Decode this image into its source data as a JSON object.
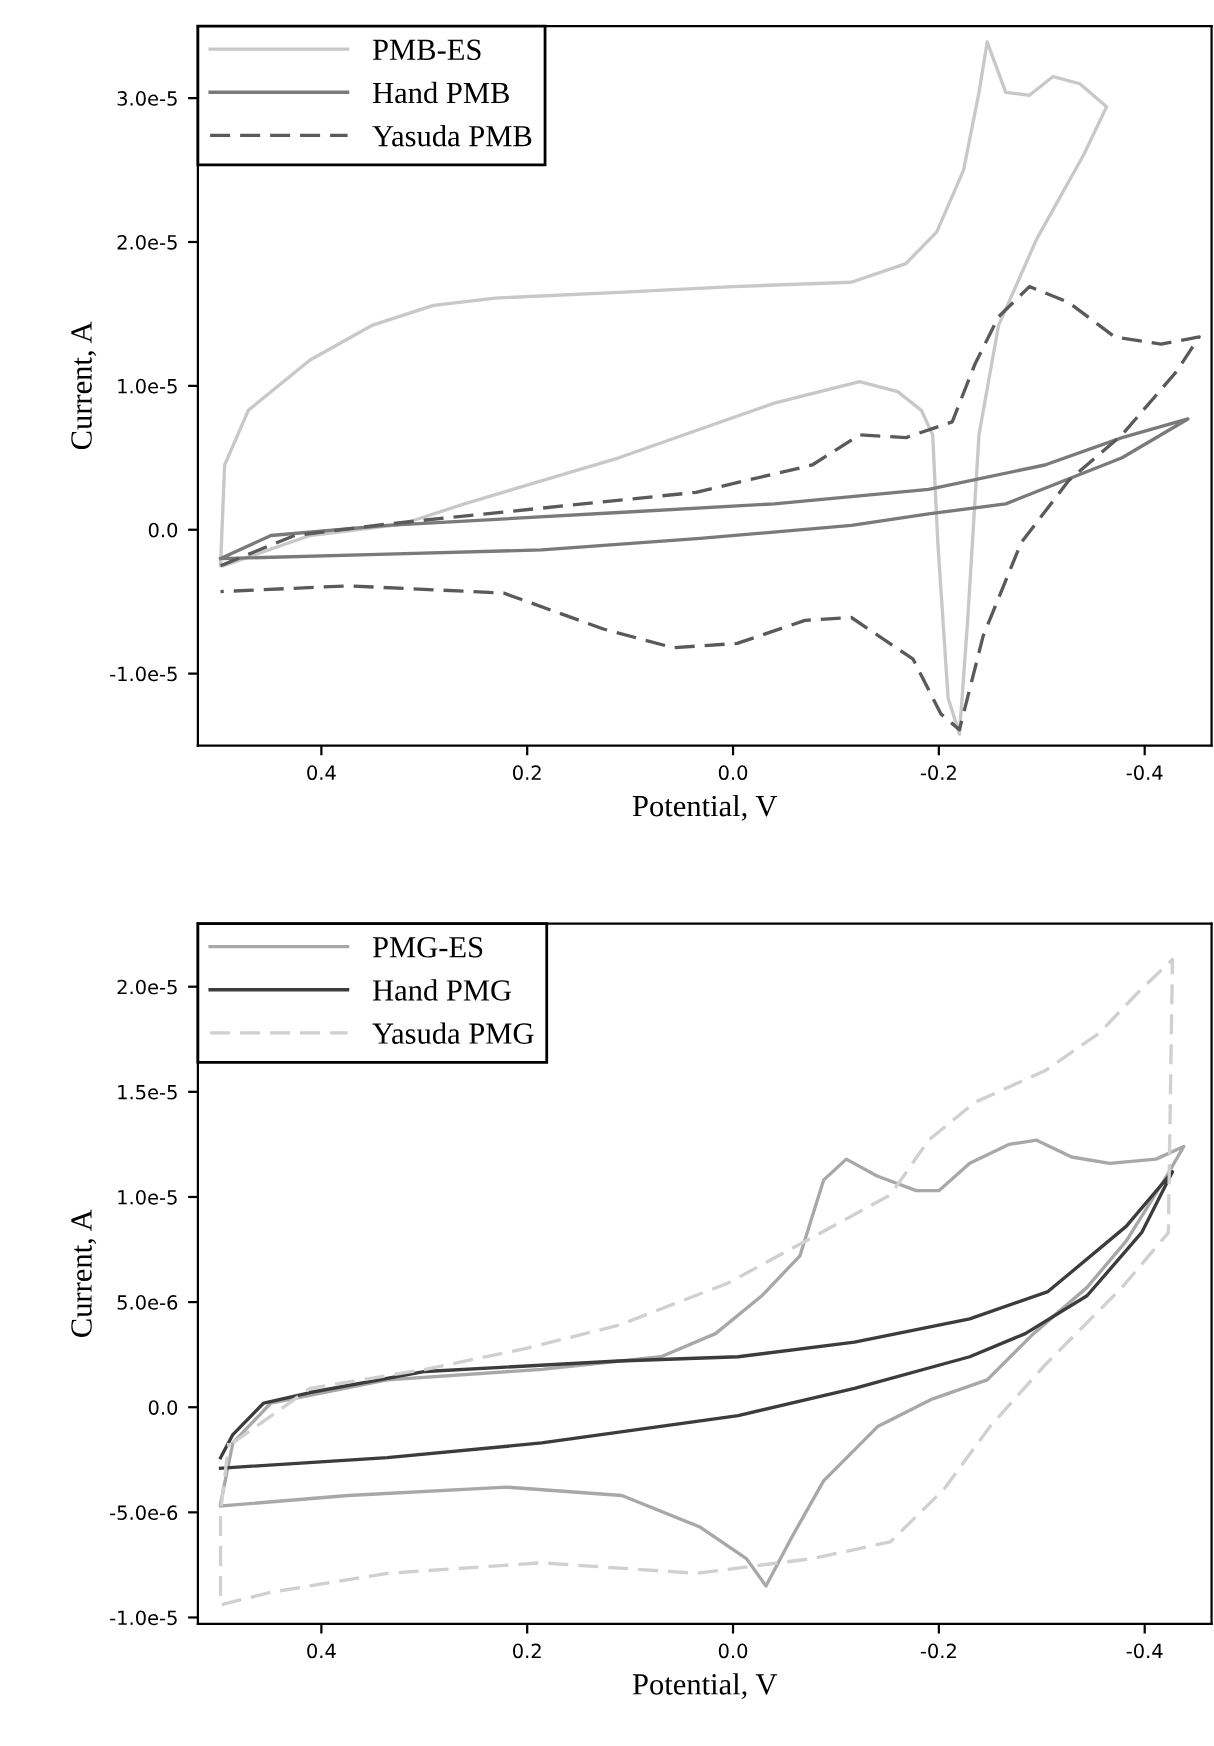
{
  "chart_data": [
    {
      "type": "line",
      "xlabel": "Potential, V",
      "ylabel": "Current, A",
      "xlim": [
        0.52,
        -0.465
      ],
      "ylim": [
        -1.5e-05,
        3.5e-05
      ],
      "xticks": [
        {
          "value": 0.4,
          "label": "0.4"
        },
        {
          "value": 0.2,
          "label": "0.2"
        },
        {
          "value": 0.0,
          "label": "0.0"
        },
        {
          "value": -0.2,
          "label": "-0.2"
        },
        {
          "value": -0.4,
          "label": "-0.4"
        }
      ],
      "yticks": [
        {
          "value": -1e-05,
          "label": "-1.0e-5"
        },
        {
          "value": 0,
          "label": "0.0"
        },
        {
          "value": 1e-05,
          "label": "1.0e-5"
        },
        {
          "value": 2e-05,
          "label": "2.0e-5"
        },
        {
          "value": 3e-05,
          "label": "3.0e-5"
        }
      ],
      "legend": "top left",
      "grid": false,
      "series": [
        {
          "name": "PMB-ES",
          "color": "#c8c8c8",
          "line_style": "solid",
          "x": [
            0.498,
            0.494,
            0.471,
            0.411,
            0.351,
            0.291,
            0.231,
            0.111,
            0.0,
            -0.115,
            -0.168,
            -0.198,
            -0.224,
            -0.239,
            -0.247,
            -0.265,
            -0.288,
            -0.311,
            -0.337,
            -0.363,
            -0.341,
            -0.295,
            -0.258,
            -0.239,
            -0.228,
            -0.22,
            -0.209,
            -0.199,
            -0.194,
            -0.183,
            -0.16,
            -0.123,
            -0.04,
            0.111,
            0.261,
            0.321,
            0.411,
            0.495
          ],
          "values": [
            -2.5e-06,
            4.5e-06,
            8.3e-06,
            1.18e-05,
            1.42e-05,
            1.56e-05,
            1.61e-05,
            1.65e-05,
            1.69e-05,
            1.72e-05,
            1.85e-05,
            2.07e-05,
            2.5e-05,
            3.04e-05,
            3.39e-05,
            3.04e-05,
            3.02e-05,
            3.15e-05,
            3.1e-05,
            2.94e-05,
            2.61e-05,
            2.02e-05,
            1.42e-05,
            6.6e-06,
            -6.3e-06,
            -1.42e-05,
            -1.17e-05,
            -9e-07,
            6.6e-06,
            8.3e-06,
            9.6e-06,
            1.03e-05,
            8.8e-06,
            5e-06,
            1.8e-06,
            4e-07,
            -4e-07,
            -2.5e-06
          ]
        },
        {
          "name": "Hand PMB",
          "color": "#7a7a7a",
          "line_style": "solid",
          "x": [
            0.498,
            0.449,
            0.336,
            0.111,
            -0.04,
            -0.19,
            -0.303,
            -0.378,
            -0.442,
            -0.378,
            -0.265,
            -0.19,
            -0.115,
            0.032,
            0.186,
            0.336,
            0.495
          ],
          "values": [
            -2e-06,
            -4e-07,
            3e-07,
            1.2e-06,
            1.8e-06,
            2.8e-06,
            4.5e-06,
            6.4e-06,
            7.7e-06,
            5e-06,
            1.8e-06,
            1.1e-06,
            3e-07,
            -6e-07,
            -1.4e-06,
            -1.7e-06,
            -2e-06
          ]
        },
        {
          "name": "Yasuda PMB",
          "color": "#5a5a5a",
          "line_style": "dashed",
          "x": [
            0.498,
            0.426,
            0.336,
            0.186,
            0.036,
            -0.077,
            -0.123,
            -0.168,
            -0.213,
            -0.235,
            -0.258,
            -0.288,
            -0.326,
            -0.371,
            -0.416,
            -0.453,
            -0.431,
            -0.378,
            -0.326,
            -0.28,
            -0.243,
            -0.22,
            -0.202,
            -0.175,
            -0.115,
            -0.07,
            -0.004,
            0.058,
            0.126,
            0.223,
            0.374,
            0.498
          ],
          "values": [
            -2.5e-06,
            -4e-07,
            4e-07,
            1.5e-06,
            2.6e-06,
            4.5e-06,
            6.6e-06,
            6.4e-06,
            7.5e-06,
            1.15e-05,
            1.48e-05,
            1.69e-05,
            1.58e-05,
            1.34e-05,
            1.29e-05,
            1.34e-05,
            1.1e-05,
            6.6e-06,
            3.4e-06,
            -9e-07,
            -7.4e-06,
            -1.39e-05,
            -1.28e-05,
            -9e-06,
            -6.1e-06,
            -6.3e-06,
            -7.9e-06,
            -8.2e-06,
            -6.9e-06,
            -4.4e-06,
            -3.9e-06,
            -4.3e-06
          ]
        }
      ]
    },
    {
      "type": "line",
      "xlabel": "Potential, V",
      "ylabel": "Current, A",
      "xlim": [
        0.52,
        -0.465
      ],
      "ylim": [
        -1.03e-05,
        2.3e-05
      ],
      "xticks": [
        {
          "value": 0.4,
          "label": "0.4"
        },
        {
          "value": 0.2,
          "label": "0.2"
        },
        {
          "value": 0.0,
          "label": "0.0"
        },
        {
          "value": -0.2,
          "label": "-0.2"
        },
        {
          "value": -0.4,
          "label": "-0.4"
        }
      ],
      "yticks": [
        {
          "value": -1e-05,
          "label": "-1.0e-5"
        },
        {
          "value": -5e-06,
          "label": "-5.0e-6"
        },
        {
          "value": 0,
          "label": "0.0"
        },
        {
          "value": 5e-06,
          "label": "5.0e-6"
        },
        {
          "value": 1e-05,
          "label": "1.0e-5"
        },
        {
          "value": 1.5e-05,
          "label": "1.5e-5"
        },
        {
          "value": 2e-05,
          "label": "2.0e-5"
        }
      ],
      "legend": "top left",
      "grid": false,
      "series": [
        {
          "name": "PMG-ES",
          "color": "#a8a8a8",
          "line_style": "solid",
          "x": [
            0.498,
            0.486,
            0.449,
            0.336,
            0.186,
            0.07,
            0.017,
            -0.028,
            -0.065,
            -0.088,
            -0.11,
            -0.14,
            -0.178,
            -0.2,
            -0.23,
            -0.268,
            -0.295,
            -0.329,
            -0.366,
            -0.411,
            -0.438,
            -0.419,
            -0.382,
            -0.344,
            -0.292,
            -0.247,
            -0.194,
            -0.141,
            -0.088,
            -0.058,
            -0.032,
            -0.013,
            0.032,
            0.108,
            0.22,
            0.374,
            0.498
          ],
          "values": [
            -4.6e-06,
            -1.7e-06,
            2e-07,
            1.3e-06,
            1.8e-06,
            2.4e-06,
            3.5e-06,
            5.3e-06,
            7.2e-06,
            1.08e-05,
            1.18e-05,
            1.1e-05,
            1.03e-05,
            1.03e-05,
            1.16e-05,
            1.25e-05,
            1.27e-05,
            1.19e-05,
            1.16e-05,
            1.18e-05,
            1.24e-05,
            1.08e-05,
            7.9e-06,
            5.7e-06,
            3.5e-06,
            1.3e-06,
            4e-07,
            -9e-07,
            -3.5e-06,
            -6.1e-06,
            -8.5e-06,
            -7.2e-06,
            -5.7e-06,
            -4.2e-06,
            -3.8e-06,
            -4.2e-06,
            -4.7e-06
          ]
        },
        {
          "name": "Hand PMG",
          "color": "#3c3c3c",
          "line_style": "solid",
          "x": [
            0.498,
            0.486,
            0.456,
            0.411,
            0.299,
            0.111,
            -0.005,
            -0.118,
            -0.23,
            -0.306,
            -0.382,
            -0.427,
            -0.397,
            -0.344,
            -0.284,
            -0.23,
            -0.118,
            -0.005,
            0.186,
            0.336,
            0.498
          ],
          "values": [
            -2.4e-06,
            -1.3e-06,
            2e-07,
            7e-07,
            1.7e-06,
            2.2e-06,
            2.4e-06,
            3.1e-06,
            4.2e-06,
            5.5e-06,
            8.6e-06,
            1.12e-05,
            8.3e-06,
            5.3e-06,
            3.5e-06,
            2.4e-06,
            9e-07,
            -4e-07,
            -1.7e-06,
            -2.4e-06,
            -2.9e-06
          ]
        },
        {
          "name": "Yasuda PMG",
          "color": "#d0d0d0",
          "line_style": "dashed",
          "x": [
            0.486,
            0.411,
            0.299,
            0.201,
            0.111,
            0.005,
            -0.093,
            -0.153,
            -0.19,
            -0.235,
            -0.303,
            -0.356,
            -0.393,
            -0.427,
            -0.423,
            -0.378,
            -0.303,
            -0.25,
            -0.205,
            -0.153,
            -0.077,
            0.036,
            0.186,
            0.336,
            0.449,
            0.498,
            0.498,
            0.49
          ],
          "values": [
            -1.7e-06,
            9e-07,
            1.8e-06,
            2.8e-06,
            3.9e-06,
            5.9e-06,
            8.5e-06,
            1.01e-05,
            1.27e-05,
            1.45e-05,
            1.6e-05,
            1.78e-05,
            1.97e-05,
            2.13e-05,
            8.3e-06,
            5.7e-06,
            2e-06,
            -9e-07,
            -3.9e-06,
            -6.4e-06,
            -7.2e-06,
            -7.9e-06,
            -7.4e-06,
            -7.9e-06,
            -8.8e-06,
            -9.4e-06,
            -5e-06,
            -1.7e-06
          ]
        }
      ]
    }
  ]
}
